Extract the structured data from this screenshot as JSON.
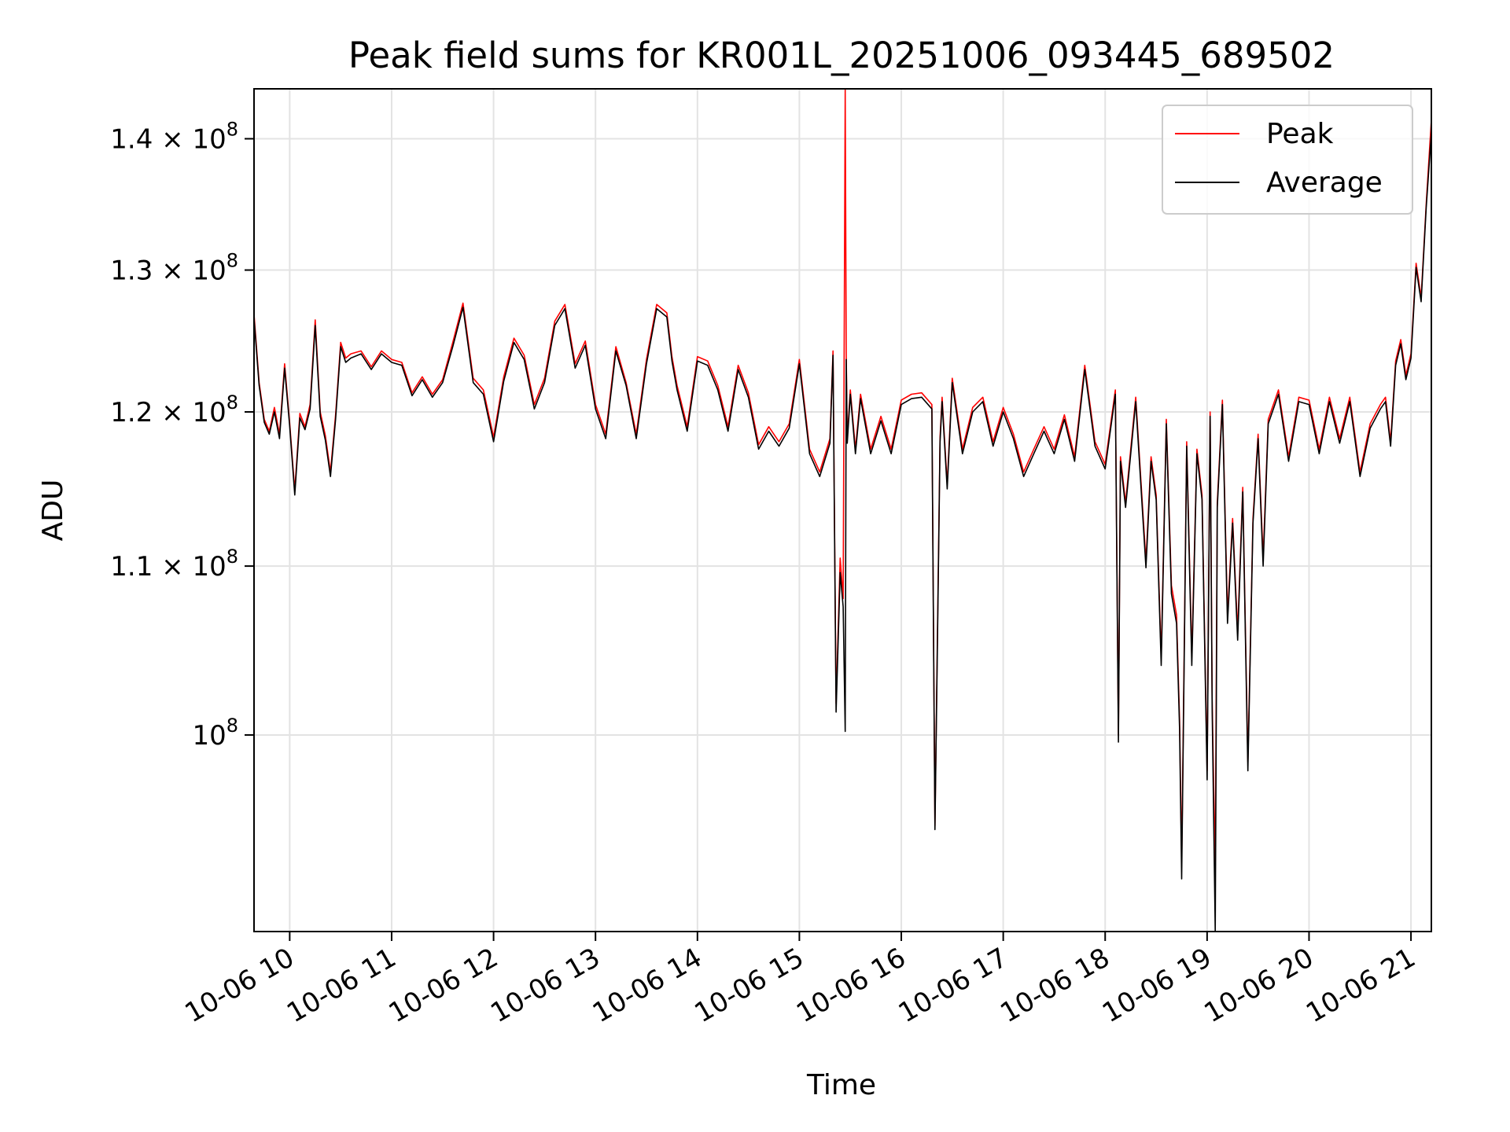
{
  "chart_data": {
    "type": "line",
    "title": "Peak field sums for KR001L_20251006_093445_689502",
    "xlabel": "Time",
    "ylabel": "ADU",
    "yscale": "log",
    "ylim": [
      89500000,
      144000000
    ],
    "xlim": [
      9.65,
      21.2
    ],
    "grid": true,
    "legend_position": "top-right",
    "x_ticks": [
      {
        "value": 10,
        "label": "10-06 10"
      },
      {
        "value": 11,
        "label": "10-06 11"
      },
      {
        "value": 12,
        "label": "10-06 12"
      },
      {
        "value": 13,
        "label": "10-06 13"
      },
      {
        "value": 14,
        "label": "10-06 14"
      },
      {
        "value": 15,
        "label": "10-06 15"
      },
      {
        "value": 16,
        "label": "10-06 16"
      },
      {
        "value": 17,
        "label": "10-06 17"
      },
      {
        "value": 18,
        "label": "10-06 18"
      },
      {
        "value": 19,
        "label": "10-06 19"
      },
      {
        "value": 20,
        "label": "10-06 20"
      },
      {
        "value": 21,
        "label": "10-06 21"
      }
    ],
    "y_ticks": [
      {
        "value": 100000000,
        "base": "10",
        "exp": "8"
      },
      {
        "value": 110000000,
        "base": "1.1 × 10",
        "exp": "8"
      },
      {
        "value": 120000000,
        "base": "1.2 × 10",
        "exp": "8"
      },
      {
        "value": 130000000,
        "base": "1.3 × 10",
        "exp": "8"
      },
      {
        "value": 140000000,
        "base": "1.4 × 10",
        "exp": "8"
      }
    ],
    "series": [
      {
        "name": "Peak",
        "color": "#ff0000",
        "x": [
          9.65,
          9.7,
          9.75,
          9.8,
          9.85,
          9.9,
          9.95,
          10.0,
          10.05,
          10.1,
          10.15,
          10.2,
          10.25,
          10.3,
          10.35,
          10.4,
          10.45,
          10.5,
          10.55,
          10.6,
          10.7,
          10.8,
          10.9,
          11.0,
          11.1,
          11.2,
          11.3,
          11.4,
          11.5,
          11.6,
          11.7,
          11.8,
          11.9,
          12.0,
          12.1,
          12.2,
          12.3,
          12.4,
          12.5,
          12.6,
          12.7,
          12.8,
          12.9,
          13.0,
          13.1,
          13.2,
          13.3,
          13.4,
          13.5,
          13.6,
          13.7,
          13.75,
          13.8,
          13.9,
          14.0,
          14.1,
          14.2,
          14.3,
          14.4,
          14.5,
          14.6,
          14.7,
          14.8,
          14.9,
          15.0,
          15.1,
          15.2,
          15.3,
          15.33,
          15.36,
          15.4,
          15.43,
          15.45,
          15.46,
          15.47,
          15.5,
          15.55,
          15.6,
          15.7,
          15.8,
          15.9,
          16.0,
          16.1,
          16.2,
          16.3,
          16.33,
          16.35,
          16.38,
          16.4,
          16.45,
          16.5,
          16.6,
          16.7,
          16.8,
          16.9,
          17.0,
          17.1,
          17.2,
          17.3,
          17.4,
          17.5,
          17.6,
          17.7,
          17.8,
          17.9,
          18.0,
          18.1,
          18.13,
          18.15,
          18.2,
          18.3,
          18.4,
          18.45,
          18.5,
          18.55,
          18.6,
          18.65,
          18.7,
          18.73,
          18.75,
          18.8,
          18.85,
          18.9,
          18.95,
          19.0,
          19.03,
          19.05,
          19.08,
          19.1,
          19.15,
          19.2,
          19.25,
          19.3,
          19.35,
          19.4,
          19.45,
          19.5,
          19.55,
          19.6,
          19.7,
          19.8,
          19.9,
          20.0,
          20.1,
          20.2,
          20.3,
          20.4,
          20.5,
          20.6,
          20.7,
          20.75,
          20.8,
          20.85,
          20.9,
          20.95,
          21.0,
          21.05,
          21.1,
          21.15,
          21.2
        ],
        "values": [
          126800000,
          122000000,
          119500000,
          118700000,
          120300000,
          118500000,
          123300000,
          119200000,
          114800000,
          119900000,
          119000000,
          120500000,
          126400000,
          120000000,
          118400000,
          116000000,
          119800000,
          124800000,
          123700000,
          124000000,
          124200000,
          123100000,
          124200000,
          123600000,
          123400000,
          121300000,
          122400000,
          121200000,
          122200000,
          124800000,
          127600000,
          122300000,
          121500000,
          118300000,
          122400000,
          125100000,
          123900000,
          120500000,
          122300000,
          126300000,
          127500000,
          123300000,
          124900000,
          120500000,
          118500000,
          124500000,
          122000000,
          118500000,
          123600000,
          127500000,
          126900000,
          123800000,
          121800000,
          119000000,
          123800000,
          123500000,
          121800000,
          119000000,
          123200000,
          121300000,
          117800000,
          119000000,
          118000000,
          119200000,
          123600000,
          117500000,
          116000000,
          118200000,
          124200000,
          101800000,
          110500000,
          108000000,
          144000000,
          124000000,
          118200000,
          121500000,
          117500000,
          121200000,
          117500000,
          119700000,
          117500000,
          120800000,
          121200000,
          121300000,
          120500000,
          95000000,
          103800000,
          118300000,
          121000000,
          115200000,
          122300000,
          117500000,
          120300000,
          121000000,
          118000000,
          120300000,
          118500000,
          116000000,
          117500000,
          119000000,
          117500000,
          119800000,
          117000000,
          123200000,
          118000000,
          116500000,
          121500000,
          100000000,
          117000000,
          114000000,
          121000000,
          110300000,
          117000000,
          114500000,
          104500000,
          119500000,
          108800000,
          107000000,
          100800000,
          93000000,
          118000000,
          104500000,
          117500000,
          114500000,
          98000000,
          120000000,
          102000000,
          92500000,
          114000000,
          120800000,
          107000000,
          113000000,
          106000000,
          115000000,
          98500000,
          113000000,
          118500000,
          110500000,
          119500000,
          121500000,
          117000000,
          121000000,
          120800000,
          117500000,
          121000000,
          118200000,
          121000000,
          116000000,
          119200000,
          120500000,
          121000000,
          118000000,
          123500000,
          125000000,
          122500000,
          124000000,
          130500000,
          128000000,
          135000000,
          141500000
        ]
      },
      {
        "name": "Average",
        "color": "#000000",
        "x": [
          9.65,
          9.7,
          9.75,
          9.8,
          9.85,
          9.9,
          9.95,
          10.0,
          10.05,
          10.1,
          10.15,
          10.2,
          10.25,
          10.3,
          10.35,
          10.4,
          10.45,
          10.5,
          10.55,
          10.6,
          10.7,
          10.8,
          10.9,
          11.0,
          11.1,
          11.2,
          11.3,
          11.4,
          11.5,
          11.6,
          11.7,
          11.8,
          11.9,
          12.0,
          12.1,
          12.2,
          12.3,
          12.4,
          12.5,
          12.6,
          12.7,
          12.8,
          12.9,
          13.0,
          13.1,
          13.2,
          13.3,
          13.4,
          13.5,
          13.6,
          13.7,
          13.75,
          13.8,
          13.9,
          14.0,
          14.1,
          14.2,
          14.3,
          14.4,
          14.5,
          14.6,
          14.7,
          14.8,
          14.9,
          15.0,
          15.1,
          15.2,
          15.3,
          15.33,
          15.36,
          15.4,
          15.43,
          15.45,
          15.46,
          15.47,
          15.5,
          15.55,
          15.6,
          15.7,
          15.8,
          15.9,
          16.0,
          16.1,
          16.2,
          16.3,
          16.33,
          16.35,
          16.38,
          16.4,
          16.45,
          16.5,
          16.6,
          16.7,
          16.8,
          16.9,
          17.0,
          17.1,
          17.2,
          17.3,
          17.4,
          17.5,
          17.6,
          17.7,
          17.8,
          17.9,
          18.0,
          18.1,
          18.13,
          18.15,
          18.2,
          18.3,
          18.4,
          18.45,
          18.5,
          18.55,
          18.6,
          18.65,
          18.7,
          18.73,
          18.75,
          18.8,
          18.85,
          18.9,
          18.95,
          19.0,
          19.03,
          19.05,
          19.08,
          19.1,
          19.15,
          19.2,
          19.25,
          19.3,
          19.35,
          19.4,
          19.45,
          19.5,
          19.55,
          19.6,
          19.7,
          19.8,
          19.9,
          20.0,
          20.1,
          20.2,
          20.3,
          20.4,
          20.5,
          20.6,
          20.7,
          20.75,
          20.8,
          20.85,
          20.9,
          20.95,
          21.0,
          21.05,
          21.1,
          21.15,
          21.2
        ],
        "values": [
          126500000,
          121800000,
          119300000,
          118500000,
          120000000,
          118200000,
          123000000,
          119000000,
          114500000,
          119600000,
          118800000,
          120200000,
          126000000,
          119700000,
          118100000,
          115700000,
          119500000,
          124500000,
          123400000,
          123700000,
          124000000,
          122900000,
          124000000,
          123400000,
          123200000,
          121100000,
          122200000,
          121000000,
          122000000,
          124500000,
          127300000,
          122000000,
          121200000,
          118000000,
          122100000,
          124800000,
          123600000,
          120200000,
          122000000,
          126000000,
          127200000,
          123000000,
          124600000,
          120200000,
          118200000,
          124200000,
          121800000,
          118200000,
          123300000,
          127200000,
          126600000,
          123500000,
          121500000,
          118700000,
          123500000,
          123200000,
          121500000,
          118700000,
          122900000,
          121000000,
          117500000,
          118700000,
          117700000,
          118900000,
          123300000,
          117200000,
          115700000,
          117900000,
          123900000,
          101300000,
          109600000,
          107500000,
          100200000,
          123600000,
          117900000,
          121200000,
          117200000,
          120900000,
          117200000,
          119400000,
          117200000,
          120500000,
          120900000,
          121000000,
          120200000,
          94800000,
          103300000,
          118000000,
          120700000,
          114900000,
          122000000,
          117200000,
          120000000,
          120700000,
          117700000,
          120000000,
          118200000,
          115700000,
          117200000,
          118700000,
          117200000,
          119500000,
          116700000,
          122900000,
          117700000,
          116200000,
          121200000,
          99600000,
          116700000,
          113700000,
          120700000,
          109900000,
          116700000,
          114200000,
          104000000,
          119200000,
          108300000,
          106500000,
          100300000,
          92200000,
          117700000,
          104000000,
          117200000,
          114200000,
          97500000,
          119700000,
          101500000,
          89500000,
          113700000,
          120500000,
          106500000,
          112700000,
          105500000,
          114700000,
          98000000,
          112700000,
          118200000,
          110000000,
          119200000,
          121200000,
          116700000,
          120700000,
          120500000,
          117200000,
          120700000,
          117900000,
          120700000,
          115700000,
          118900000,
          120200000,
          120700000,
          117700000,
          123200000,
          124700000,
          122200000,
          123700000,
          130200000,
          127700000,
          134700000,
          140500000
        ]
      }
    ]
  }
}
